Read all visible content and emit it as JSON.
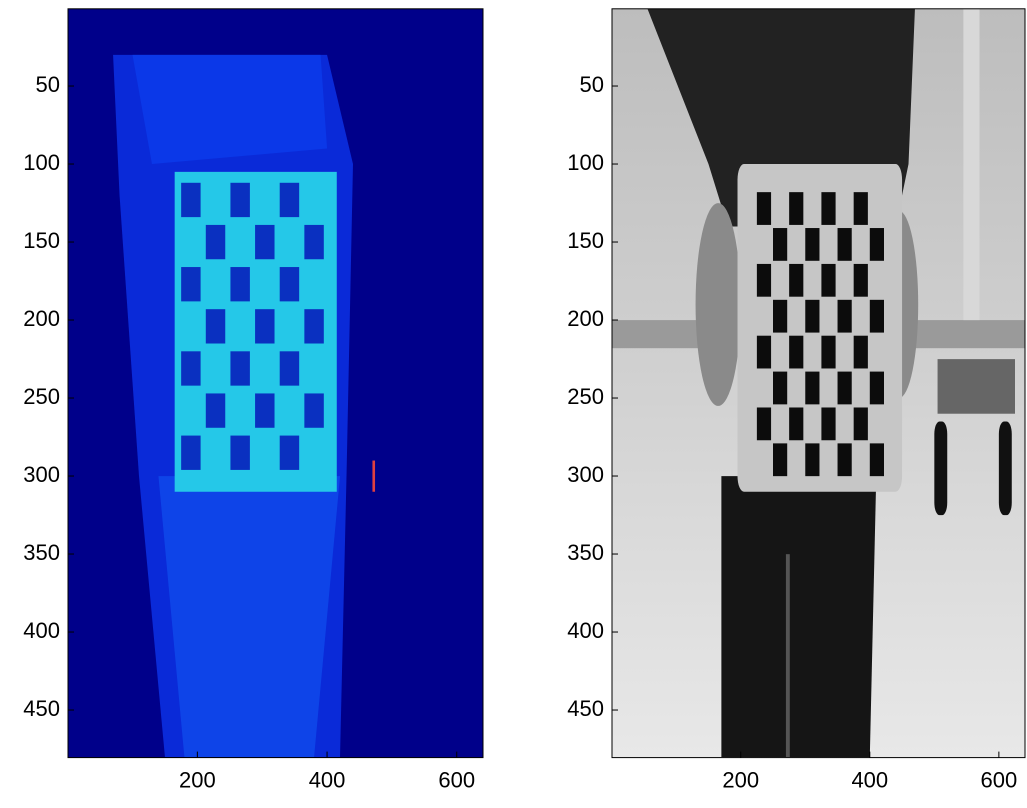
{
  "chart_data": [
    {
      "type": "image",
      "xlim": [
        0.5,
        640.5
      ],
      "ylim": [
        0.5,
        480.5
      ],
      "y_reversed": true,
      "xticks": [
        200,
        400,
        600
      ],
      "yticks": [
        50,
        100,
        150,
        200,
        250,
        300,
        350,
        400,
        450
      ]
    },
    {
      "type": "image",
      "xlim": [
        0.5,
        640.5
      ],
      "ylim": [
        0.5,
        480.5
      ],
      "y_reversed": true,
      "xticks": [
        200,
        400,
        600
      ],
      "yticks": [
        50,
        100,
        150,
        200,
        250,
        300,
        350,
        400,
        450
      ]
    }
  ]
}
